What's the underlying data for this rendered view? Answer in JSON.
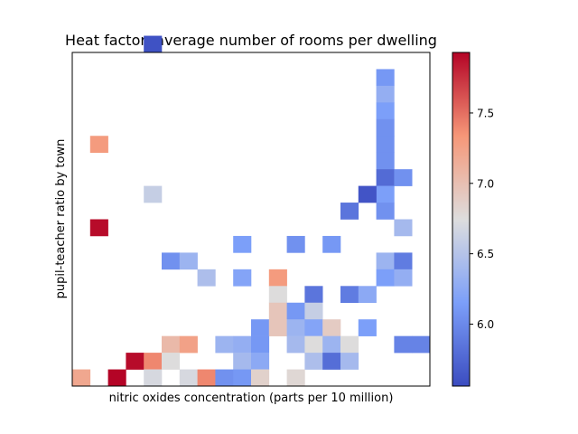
{
  "chart_data": {
    "type": "heatmap",
    "title": "Heat factor: average number of rooms per dwelling",
    "xlabel": "nitric oxides concentration (parts per 10 million)",
    "ylabel": "pupil-teacher ratio by town",
    "grid": false,
    "x_bins": 20,
    "y_bins": 20,
    "colorbar": {
      "min": 5.56,
      "max": 7.93,
      "ticks": [
        6.0,
        6.5,
        7.0,
        7.5
      ],
      "tick_labels": [
        "6.0",
        "6.5",
        "7.0",
        "7.5"
      ],
      "colormap": "coolwarm"
    },
    "cells": [
      [
        4,
        19,
        5.6
      ],
      [
        1,
        13,
        7.3
      ],
      [
        4,
        10,
        6.6
      ],
      [
        1,
        8,
        7.9
      ],
      [
        17,
        17,
        6.1
      ],
      [
        17,
        16,
        6.3
      ],
      [
        17,
        15,
        6.15
      ],
      [
        17,
        14,
        6.05
      ],
      [
        17,
        13,
        6.05
      ],
      [
        17,
        12,
        6.05
      ],
      [
        17,
        11,
        5.78
      ],
      [
        17,
        10,
        6.15
      ],
      [
        17,
        9,
        6.05
      ],
      [
        17,
        6,
        6.35
      ],
      [
        17,
        5,
        6.15
      ],
      [
        18,
        11,
        6.05
      ],
      [
        18,
        8,
        6.4
      ],
      [
        18,
        6,
        5.9
      ],
      [
        18,
        5,
        6.3
      ],
      [
        18,
        1,
        5.95
      ],
      [
        16,
        10,
        5.62
      ],
      [
        15,
        9,
        5.85
      ],
      [
        19,
        1,
        5.95
      ],
      [
        9,
        7,
        6.15
      ],
      [
        12,
        7,
        6.05
      ],
      [
        14,
        7,
        6.1
      ],
      [
        5,
        6,
        6.05
      ],
      [
        6,
        6,
        6.35
      ],
      [
        7,
        5,
        6.45
      ],
      [
        9,
        5,
        6.2
      ],
      [
        11,
        5,
        7.3
      ],
      [
        11,
        4,
        6.75
      ],
      [
        13,
        4,
        5.85
      ],
      [
        15,
        4,
        5.9
      ],
      [
        16,
        4,
        6.25
      ],
      [
        11,
        3,
        6.95
      ],
      [
        12,
        3,
        6.1
      ],
      [
        13,
        3,
        6.6
      ],
      [
        10,
        2,
        6.1
      ],
      [
        11,
        2,
        6.95
      ],
      [
        12,
        2,
        6.35
      ],
      [
        13,
        2,
        6.2
      ],
      [
        14,
        2,
        6.9
      ],
      [
        16,
        2,
        6.15
      ],
      [
        5,
        1,
        7.05
      ],
      [
        6,
        1,
        7.25
      ],
      [
        8,
        1,
        6.35
      ],
      [
        9,
        1,
        6.3
      ],
      [
        10,
        1,
        6.1
      ],
      [
        12,
        1,
        6.4
      ],
      [
        13,
        1,
        6.75
      ],
      [
        14,
        1,
        6.35
      ],
      [
        15,
        1,
        6.75
      ],
      [
        3,
        0,
        7.9
      ],
      [
        4,
        0,
        7.4
      ],
      [
        5,
        0,
        6.75
      ],
      [
        9,
        0,
        6.4
      ],
      [
        10,
        0,
        6.25
      ],
      [
        13,
        0,
        6.45
      ],
      [
        14,
        0,
        5.8
      ],
      [
        15,
        0,
        6.4
      ],
      [
        0,
        -1,
        7.2
      ],
      [
        2,
        -1,
        7.93
      ],
      [
        4,
        -1,
        6.7
      ],
      [
        6,
        -1,
        6.7
      ],
      [
        7,
        -1,
        7.4
      ],
      [
        8,
        -1,
        6.05
      ],
      [
        9,
        -1,
        6.1
      ],
      [
        10,
        -1,
        6.85
      ],
      [
        12,
        -1,
        6.8
      ]
    ]
  }
}
